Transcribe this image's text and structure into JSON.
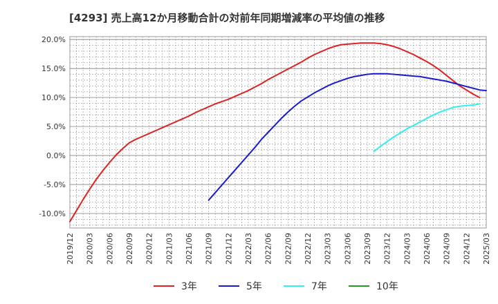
{
  "chart_data": {
    "type": "line",
    "title": "[4293]  売上高12か月移動合計の対前年同期増減率の平均値の推移",
    "xlabel": "",
    "ylabel": "",
    "ylim": [
      -12.5,
      20.5
    ],
    "y_ticks": [
      20.0,
      15.0,
      10.0,
      5.0,
      0.0,
      -5.0,
      -10.0
    ],
    "y_tick_labels": [
      "20.0%",
      "15.0%",
      "10.0%",
      "5.0%",
      "0.0%",
      "-5.0%",
      "-10.0%"
    ],
    "x_tick_labels": [
      "2019/12",
      "2020/03",
      "2020/06",
      "2020/09",
      "2020/12",
      "2021/03",
      "2021/06",
      "2021/09",
      "2021/12",
      "2022/03",
      "2022/06",
      "2022/09",
      "2022/12",
      "2023/03",
      "2023/06",
      "2023/09",
      "2023/12",
      "2024/03",
      "2024/06",
      "2024/09",
      "2024/12",
      "2025/03"
    ],
    "grid": true,
    "legend_position": "bottom",
    "series": [
      {
        "name": "3年",
        "color": "#dd2222",
        "start_index": 0,
        "values": [
          -11.4,
          -9.5,
          -7.6,
          -5.8,
          -4.1,
          -2.6,
          -1.2,
          0.1,
          1.2,
          2.2,
          2.8,
          3.3,
          3.8,
          4.3,
          4.8,
          5.3,
          5.8,
          6.3,
          6.8,
          7.4,
          7.9,
          8.4,
          8.9,
          9.3,
          9.7,
          10.2,
          10.7,
          11.2,
          11.8,
          12.4,
          13.1,
          13.7,
          14.3,
          14.9,
          15.5,
          16.1,
          16.8,
          17.4,
          17.9,
          18.4,
          18.8,
          19.1,
          19.2,
          19.3,
          19.4,
          19.4,
          19.4,
          19.3,
          19.1,
          18.8,
          18.4,
          17.9,
          17.4,
          16.8,
          16.2,
          15.5,
          14.7,
          13.8,
          12.9,
          12.0,
          11.3,
          10.6,
          10.0
        ]
      },
      {
        "name": "5年",
        "color": "#1a1acc",
        "start_index": 21,
        "values": [
          -7.7,
          -6.4,
          -5.1,
          -3.8,
          -2.5,
          -1.2,
          0.1,
          1.4,
          2.8,
          4.0,
          5.2,
          6.4,
          7.5,
          8.5,
          9.4,
          10.1,
          10.8,
          11.4,
          12.0,
          12.5,
          12.9,
          13.3,
          13.6,
          13.8,
          14.0,
          14.1,
          14.1,
          14.1,
          14.0,
          13.9,
          13.8,
          13.7,
          13.6,
          13.4,
          13.2,
          13.0,
          12.8,
          12.5,
          12.2,
          11.9,
          11.6,
          11.3,
          11.2
        ]
      },
      {
        "name": "7年",
        "color": "#33eeee",
        "start_index": 46,
        "values": [
          0.7,
          1.6,
          2.4,
          3.2,
          3.9,
          4.6,
          5.2,
          5.8,
          6.4,
          7.0,
          7.5,
          7.9,
          8.3,
          8.5,
          8.6,
          8.7,
          8.9
        ]
      },
      {
        "name": "10年",
        "color": "#229922",
        "start_index": 0,
        "values": []
      }
    ]
  }
}
